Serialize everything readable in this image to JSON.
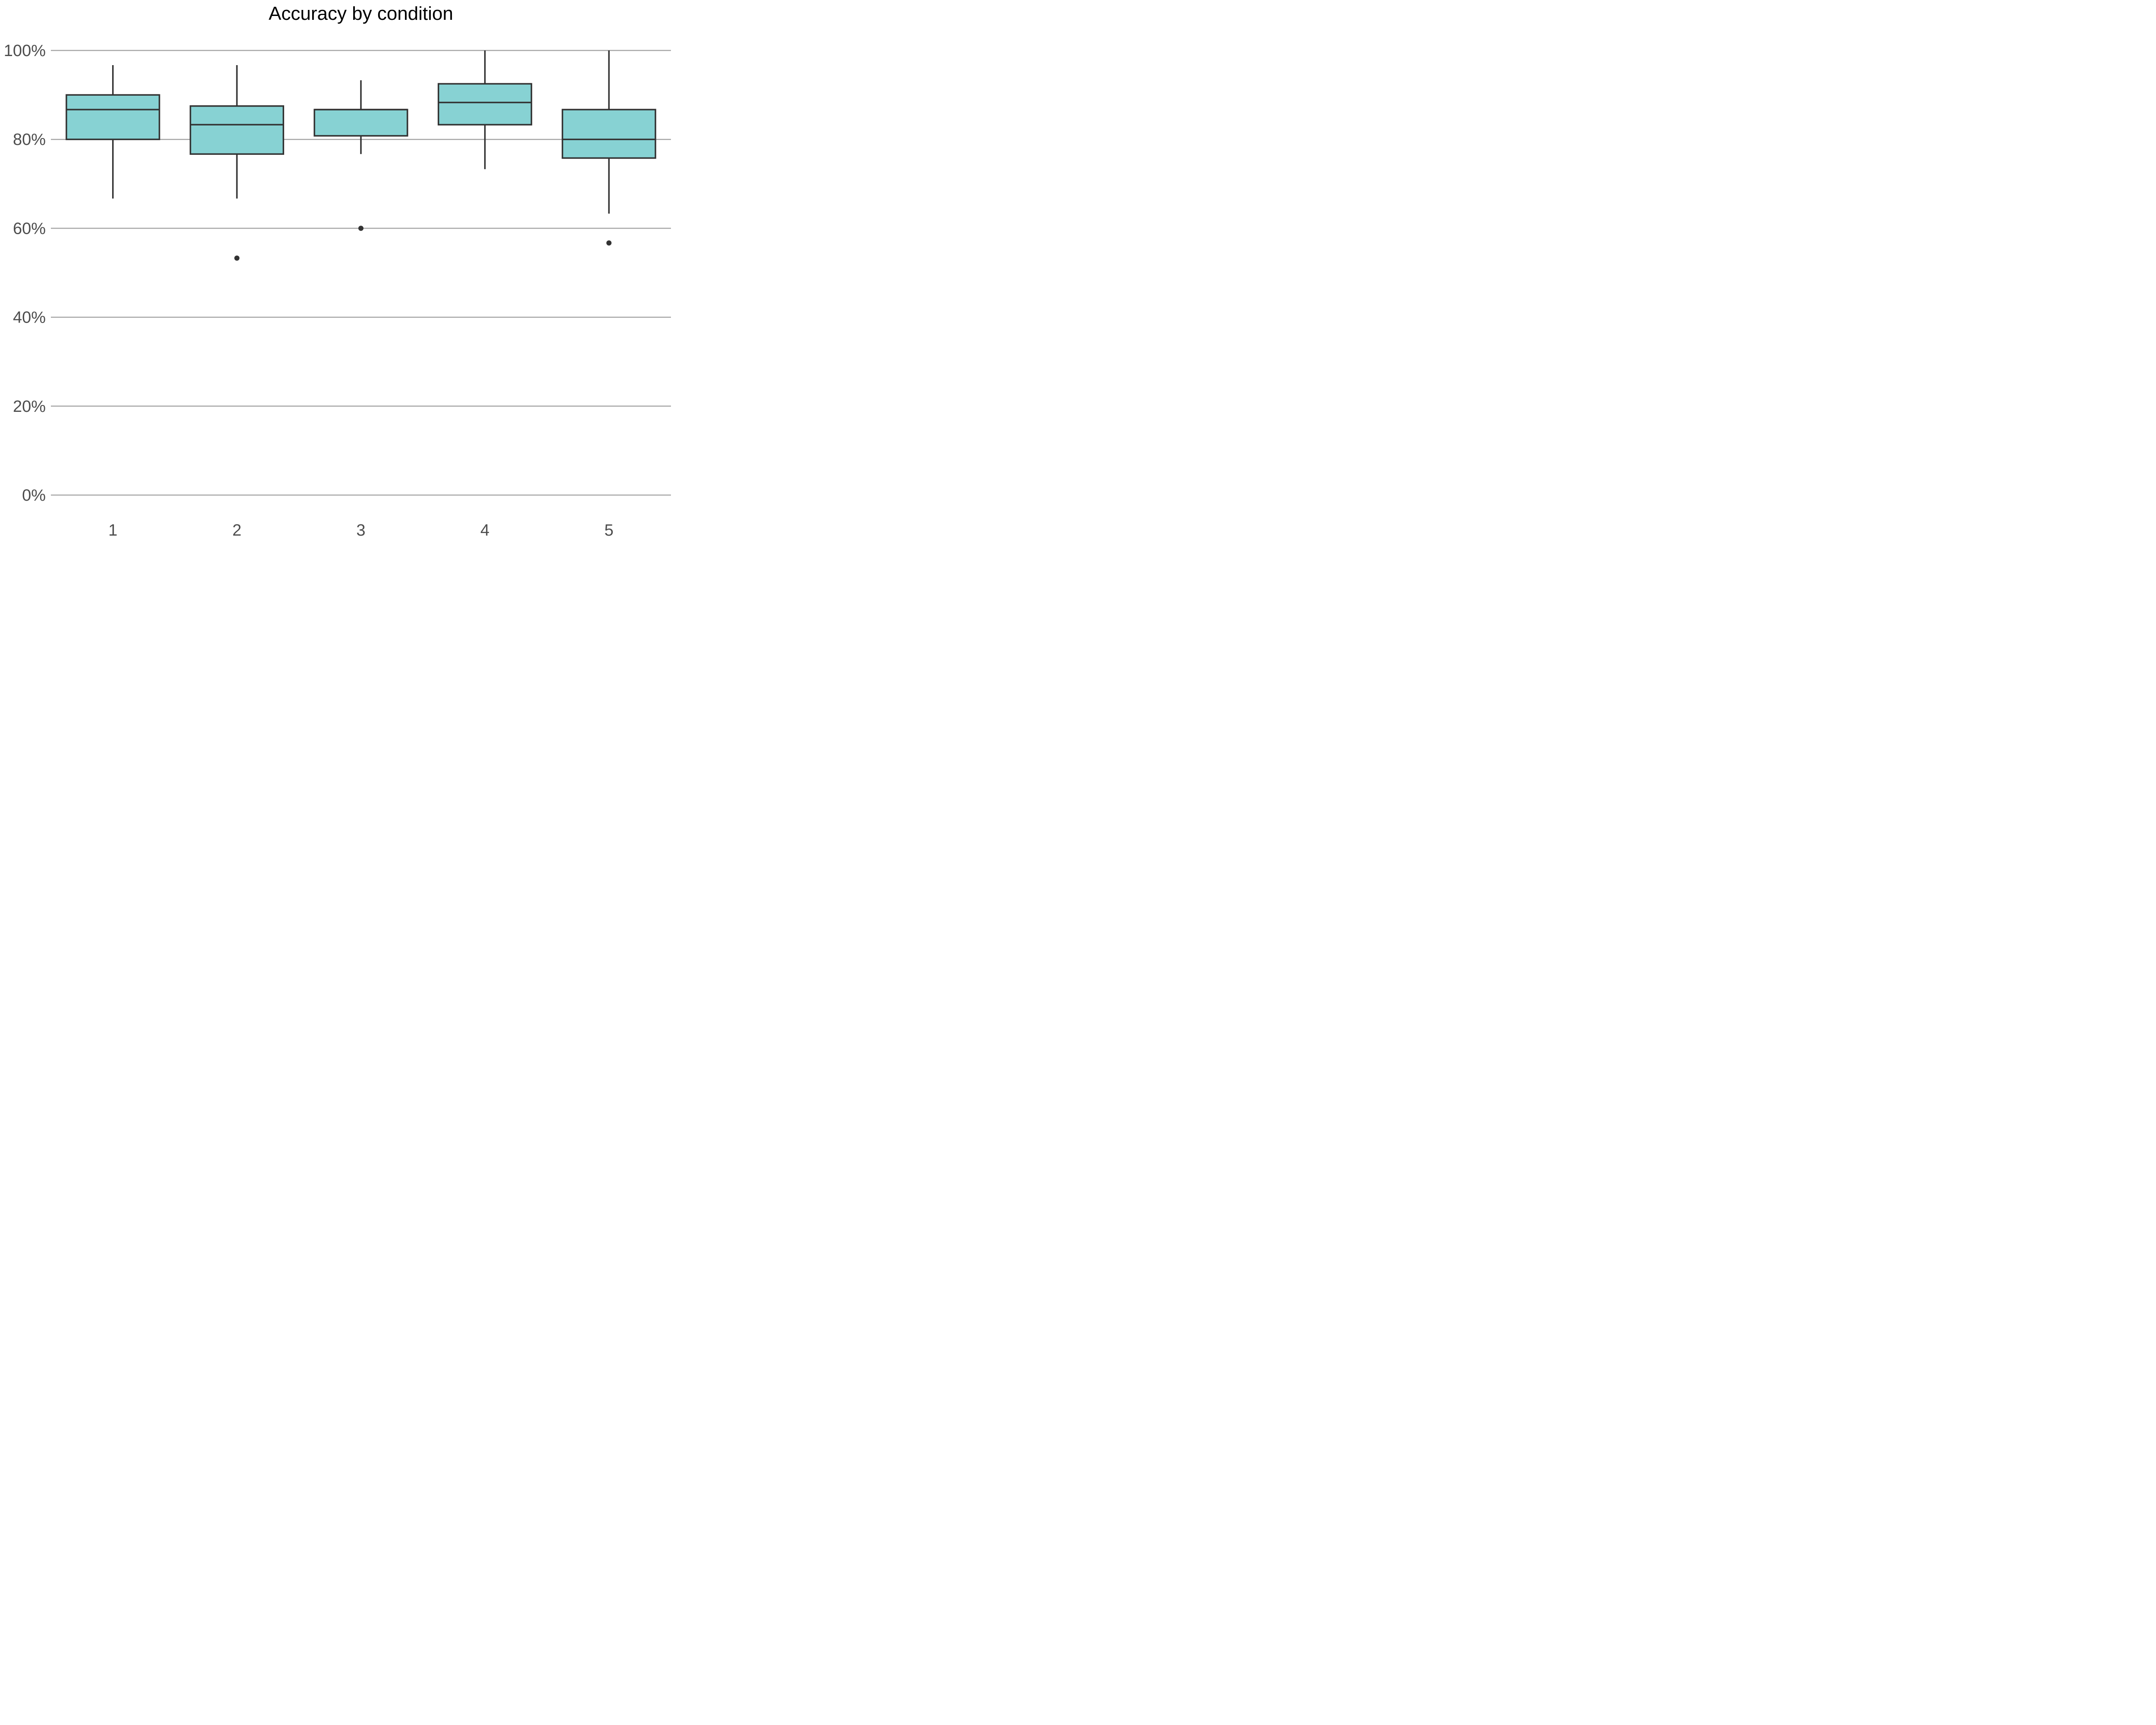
{
  "chart_data": {
    "type": "boxplot",
    "title": "Accuracy by condition",
    "xlabel": "",
    "ylabel": "",
    "ylim": [
      0,
      100
    ],
    "yticks": [
      0,
      20,
      40,
      60,
      80,
      100
    ],
    "ytick_labels": [
      "0%",
      "20%",
      "40%",
      "60%",
      "80%",
      "100%"
    ],
    "categories": [
      "1",
      "2",
      "3",
      "4",
      "5"
    ],
    "boxes": [
      {
        "whisker_low": 66.7,
        "q1": 80.0,
        "median": 86.7,
        "q3": 90.0,
        "whisker_high": 96.7,
        "outliers": []
      },
      {
        "whisker_low": 66.7,
        "q1": 76.7,
        "median": 83.3,
        "q3": 87.5,
        "whisker_high": 96.7,
        "outliers": [
          53.3
        ]
      },
      {
        "whisker_low": 76.7,
        "q1": 80.8,
        "median": 86.7,
        "q3": 86.7,
        "whisker_high": 93.3,
        "outliers": [
          60.0
        ]
      },
      {
        "whisker_low": 73.3,
        "q1": 83.3,
        "median": 88.3,
        "q3": 92.5,
        "whisker_high": 100.0,
        "outliers": []
      },
      {
        "whisker_low": 63.3,
        "q1": 75.8,
        "median": 80.0,
        "q3": 86.7,
        "whisker_high": 100.0,
        "outliers": [
          56.7
        ]
      }
    ],
    "grid": "horizontal-major",
    "legend": "none",
    "colors": {
      "box_fill": "#87d2d3",
      "box_stroke": "#333333",
      "grid": "#a6a6a6",
      "tick_text": "#4d4d4d",
      "outlier": "#333333"
    }
  }
}
